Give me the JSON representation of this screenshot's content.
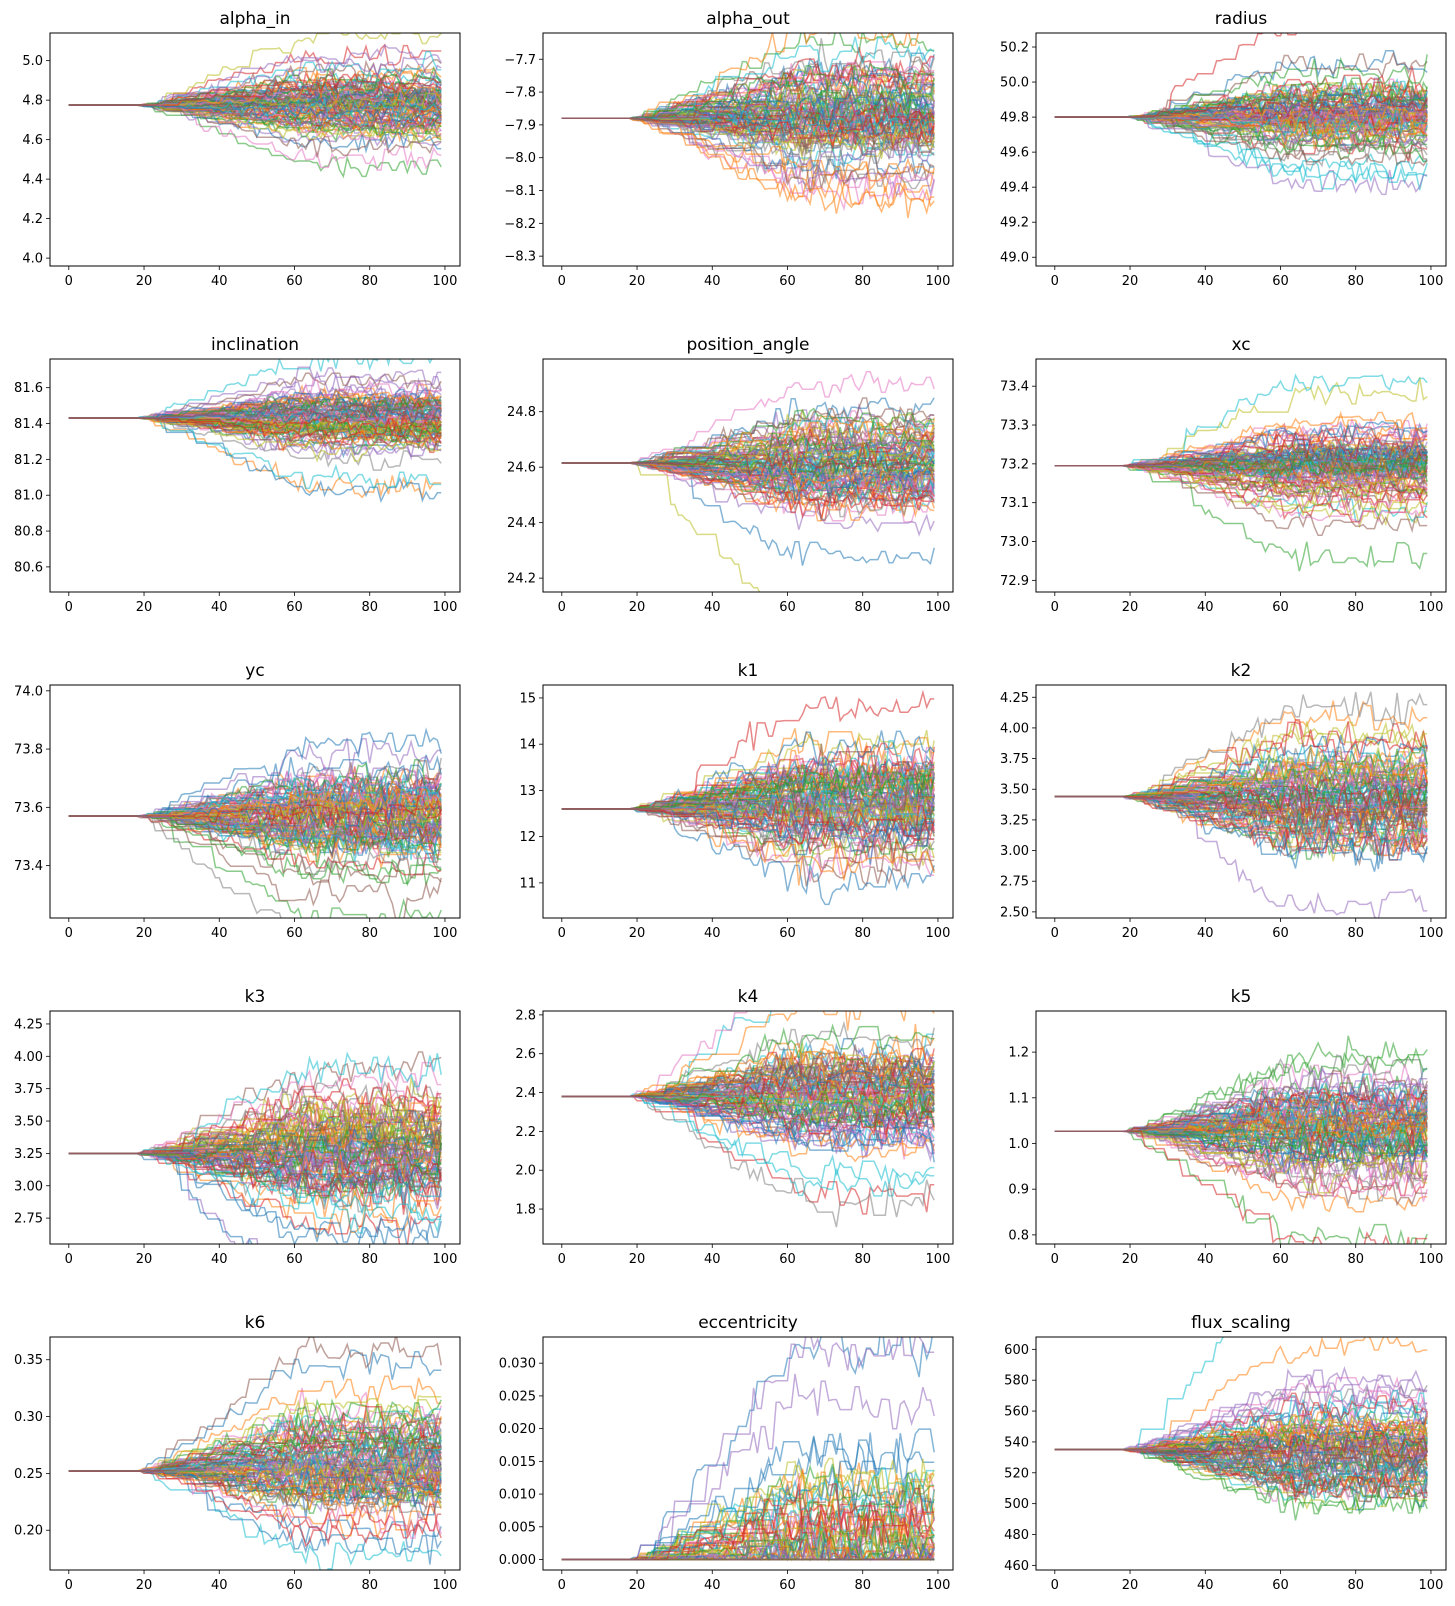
{
  "chart_data": [
    {
      "type": "line",
      "title": "alpha_in",
      "xlabel": "",
      "ylabel": "",
      "xlim": [
        -5,
        104
      ],
      "ylim": [
        3.96,
        5.14
      ],
      "xticks": [
        0,
        20,
        40,
        60,
        80,
        100
      ],
      "yticks": [
        4.0,
        4.2,
        4.4,
        4.6,
        4.8,
        5.0
      ],
      "decimals": 1,
      "n_walkers": 96,
      "n_steps": 100,
      "start": 4.775,
      "spread": 0.075,
      "burn_in_step": 18,
      "grid": false,
      "seed": 11
    },
    {
      "type": "line",
      "title": "alpha_out",
      "xlabel": "",
      "ylabel": "",
      "xlim": [
        -5,
        104
      ],
      "ylim": [
        -8.33,
        -7.62
      ],
      "xticks": [
        0,
        20,
        40,
        60,
        80,
        100
      ],
      "yticks": [
        -8.3,
        -8.2,
        -8.1,
        -8.0,
        -7.9,
        -7.8,
        -7.7
      ],
      "decimals": 1,
      "n_walkers": 96,
      "n_steps": 100,
      "start": -7.88,
      "spread": 0.07,
      "burn_in_step": 18,
      "grid": false,
      "seed": 23
    },
    {
      "type": "line",
      "title": "radius",
      "xlabel": "",
      "ylabel": "",
      "xlim": [
        -5,
        104
      ],
      "ylim": [
        48.95,
        50.28
      ],
      "xticks": [
        0,
        20,
        40,
        60,
        80,
        100
      ],
      "yticks": [
        49.0,
        49.2,
        49.4,
        49.6,
        49.8,
        50.0,
        50.2
      ],
      "decimals": 1,
      "n_walkers": 96,
      "n_steps": 100,
      "start": 49.8,
      "spread": 0.1,
      "burn_in_step": 18,
      "grid": false,
      "seed": 37
    },
    {
      "type": "line",
      "title": "inclination",
      "xlabel": "",
      "ylabel": "",
      "xlim": [
        -5,
        104
      ],
      "ylim": [
        80.46,
        81.76
      ],
      "xticks": [
        0,
        20,
        40,
        60,
        80,
        100
      ],
      "yticks": [
        80.6,
        80.8,
        81.0,
        81.2,
        81.4,
        81.6
      ],
      "decimals": 1,
      "n_walkers": 96,
      "n_steps": 100,
      "start": 81.43,
      "spread": 0.08,
      "burn_in_step": 18,
      "grid": false,
      "seed": 41
    },
    {
      "type": "line",
      "title": "position_angle",
      "xlabel": "",
      "ylabel": "",
      "xlim": [
        -5,
        104
      ],
      "ylim": [
        24.15,
        24.99
      ],
      "xticks": [
        0,
        20,
        40,
        60,
        80,
        100
      ],
      "yticks": [
        24.2,
        24.4,
        24.6,
        24.8
      ],
      "decimals": 1,
      "n_walkers": 96,
      "n_steps": 100,
      "start": 24.615,
      "spread": 0.07,
      "burn_in_step": 18,
      "grid": false,
      "seed": 53
    },
    {
      "type": "line",
      "title": "xc",
      "xlabel": "",
      "ylabel": "",
      "xlim": [
        -5,
        104
      ],
      "ylim": [
        72.87,
        73.47
      ],
      "xticks": [
        0,
        20,
        40,
        60,
        80,
        100
      ],
      "yticks": [
        72.9,
        73.0,
        73.1,
        73.2,
        73.3,
        73.4
      ],
      "decimals": 1,
      "n_walkers": 96,
      "n_steps": 100,
      "start": 73.195,
      "spread": 0.045,
      "burn_in_step": 18,
      "grid": false,
      "seed": 67
    },
    {
      "type": "line",
      "title": "yc",
      "xlabel": "",
      "ylabel": "",
      "xlim": [
        -5,
        104
      ],
      "ylim": [
        73.22,
        74.02
      ],
      "xticks": [
        0,
        20,
        40,
        60,
        80,
        100
      ],
      "yticks": [
        73.4,
        73.6,
        73.8,
        74.0
      ],
      "decimals": 1,
      "n_walkers": 96,
      "n_steps": 100,
      "start": 73.57,
      "spread": 0.08,
      "burn_in_step": 18,
      "grid": false,
      "seed": 71
    },
    {
      "type": "line",
      "title": "k1",
      "xlabel": "",
      "ylabel": "",
      "xlim": [
        -5,
        104
      ],
      "ylim": [
        10.24,
        15.28
      ],
      "xticks": [
        0,
        20,
        40,
        60,
        80,
        100
      ],
      "yticks": [
        11,
        12,
        13,
        14,
        15
      ],
      "decimals": 0,
      "n_walkers": 96,
      "n_steps": 100,
      "start": 12.6,
      "spread": 0.55,
      "burn_in_step": 18,
      "grid": false,
      "seed": 83
    },
    {
      "type": "line",
      "title": "k2",
      "xlabel": "",
      "ylabel": "",
      "xlim": [
        -5,
        104
      ],
      "ylim": [
        2.45,
        4.35
      ],
      "xticks": [
        0,
        20,
        40,
        60,
        80,
        100
      ],
      "yticks": [
        2.5,
        2.75,
        3.0,
        3.25,
        3.5,
        3.75,
        4.0,
        4.25
      ],
      "decimals": 2,
      "n_walkers": 96,
      "n_steps": 100,
      "start": 3.44,
      "spread": 0.2,
      "burn_in_step": 18,
      "grid": false,
      "seed": 97
    },
    {
      "type": "line",
      "title": "k3",
      "xlabel": "",
      "ylabel": "",
      "xlim": [
        -5,
        104
      ],
      "ylim": [
        2.55,
        4.35
      ],
      "xticks": [
        0,
        20,
        40,
        60,
        80,
        100
      ],
      "yticks": [
        2.75,
        3.0,
        3.25,
        3.5,
        3.75,
        4.0,
        4.25
      ],
      "decimals": 2,
      "n_walkers": 96,
      "n_steps": 100,
      "start": 3.25,
      "spread": 0.2,
      "burn_in_step": 18,
      "grid": false,
      "seed": 101
    },
    {
      "type": "line",
      "title": "k4",
      "xlabel": "",
      "ylabel": "",
      "xlim": [
        -5,
        104
      ],
      "ylim": [
        1.62,
        2.82
      ],
      "xticks": [
        0,
        20,
        40,
        60,
        80,
        100
      ],
      "yticks": [
        1.8,
        2.0,
        2.2,
        2.4,
        2.6,
        2.8
      ],
      "decimals": 1,
      "n_walkers": 96,
      "n_steps": 100,
      "start": 2.38,
      "spread": 0.12,
      "burn_in_step": 18,
      "grid": false,
      "seed": 113
    },
    {
      "type": "line",
      "title": "k5",
      "xlabel": "",
      "ylabel": "",
      "xlim": [
        -5,
        104
      ],
      "ylim": [
        0.78,
        1.29
      ],
      "xticks": [
        0,
        20,
        40,
        60,
        80,
        100
      ],
      "yticks": [
        0.8,
        0.9,
        1.0,
        1.1,
        1.2
      ],
      "decimals": 1,
      "n_walkers": 96,
      "n_steps": 100,
      "start": 1.027,
      "spread": 0.05,
      "burn_in_step": 18,
      "grid": false,
      "seed": 127
    },
    {
      "type": "line",
      "title": "k6",
      "xlabel": "",
      "ylabel": "",
      "xlim": [
        -5,
        104
      ],
      "ylim": [
        0.165,
        0.37
      ],
      "xticks": [
        0,
        20,
        40,
        60,
        80,
        100
      ],
      "yticks": [
        0.2,
        0.25,
        0.3,
        0.35
      ],
      "decimals": 2,
      "n_walkers": 96,
      "n_steps": 100,
      "start": 0.252,
      "spread": 0.02,
      "burn_in_step": 18,
      "grid": false,
      "seed": 131
    },
    {
      "type": "line",
      "title": "eccentricity",
      "xlabel": "",
      "ylabel": "",
      "xlim": [
        -5,
        104
      ],
      "ylim": [
        -0.0016,
        0.034
      ],
      "xticks": [
        0,
        20,
        40,
        60,
        80,
        100
      ],
      "yticks": [
        0.0,
        0.005,
        0.01,
        0.015,
        0.02,
        0.025,
        0.03
      ],
      "decimals": 3,
      "n_walkers": 96,
      "n_steps": 100,
      "start": 0.0,
      "spread": 0.006,
      "burn_in_step": 18,
      "grid": false,
      "seed": 139,
      "floor_zero": true
    },
    {
      "type": "line",
      "title": "flux_scaling",
      "xlabel": "",
      "ylabel": "",
      "xlim": [
        -5,
        104
      ],
      "ylim": [
        457,
        608
      ],
      "xticks": [
        0,
        20,
        40,
        60,
        80,
        100
      ],
      "yticks": [
        460,
        480,
        500,
        520,
        540,
        560,
        580,
        600
      ],
      "decimals": 0,
      "n_walkers": 96,
      "n_steps": 100,
      "start": 535,
      "spread": 14,
      "burn_in_step": 18,
      "grid": false,
      "seed": 149
    }
  ],
  "palette": [
    "#1f77b4",
    "#ff7f0e",
    "#2ca02c",
    "#d62728",
    "#9467bd",
    "#8c564b",
    "#e377c2",
    "#7f7f7f",
    "#bcbd22",
    "#17becf"
  ]
}
